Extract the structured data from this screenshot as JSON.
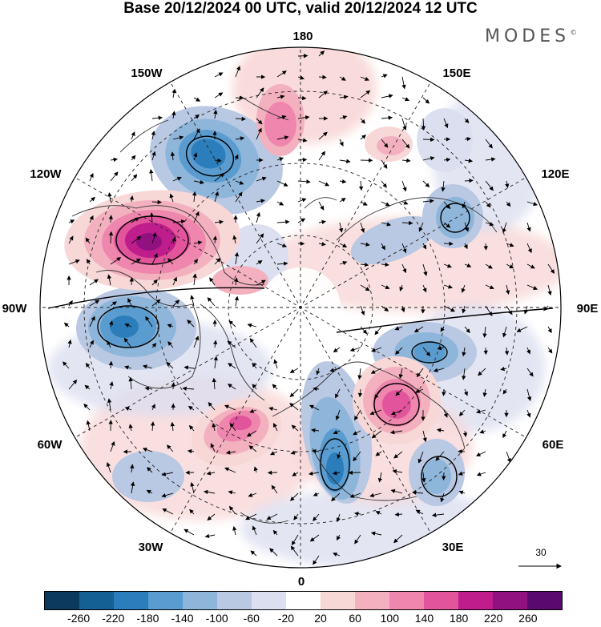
{
  "title": "Base 20/12/2024 00 UTC, valid 20/12/2024 12 UTC",
  "brand": "MODES",
  "brand_mark": "©",
  "longitude_labels": {
    "lon_180": "180",
    "lon_150W": "150W",
    "lon_150E": "150E",
    "lon_120W": "120W",
    "lon_120E": "120E",
    "lon_90W": "90W",
    "lon_90E": "90E",
    "lon_60W": "60W",
    "lon_60E": "60E",
    "lon_30W": "30W",
    "lon_30E": "30E",
    "lon_0": "0"
  },
  "reference_vector_label": "30",
  "colorbar": {
    "ticks": [
      "-260",
      "-220",
      "-180",
      "-140",
      "-100",
      "-60",
      "-20",
      "20",
      "60",
      "100",
      "140",
      "180",
      "220",
      "260"
    ],
    "colors": [
      "#0b3a5e",
      "#145f93",
      "#2b7dbb",
      "#5a9ccf",
      "#8eb6db",
      "#b9c8e3",
      "#dcdff0",
      "#ffffff",
      "#f8d7d7",
      "#f3b1c0",
      "#ee86ad",
      "#e2549c",
      "#c01d8c",
      "#921181",
      "#5a0a6e"
    ]
  },
  "anomaly_blobs": [
    {
      "name": "trough-alaska",
      "color": "#2b7dbb"
    },
    {
      "name": "trough-east-canada",
      "color": "#2b7dbb"
    },
    {
      "name": "trough-europe",
      "color": "#145f93"
    },
    {
      "name": "trough-west-siberia",
      "color": "#5a9ccf"
    },
    {
      "name": "trough-east-siberia",
      "color": "#8eb6db"
    },
    {
      "name": "trough-north-pacific",
      "color": "#b9c8e3"
    },
    {
      "name": "ridge-western-canada",
      "color": "#921181"
    },
    {
      "name": "ridge-west-russia",
      "color": "#c01d8c"
    },
    {
      "name": "ridge-north-atlantic",
      "color": "#e2549c"
    },
    {
      "name": "ridge-bering",
      "color": "#ee86ad"
    }
  ]
}
